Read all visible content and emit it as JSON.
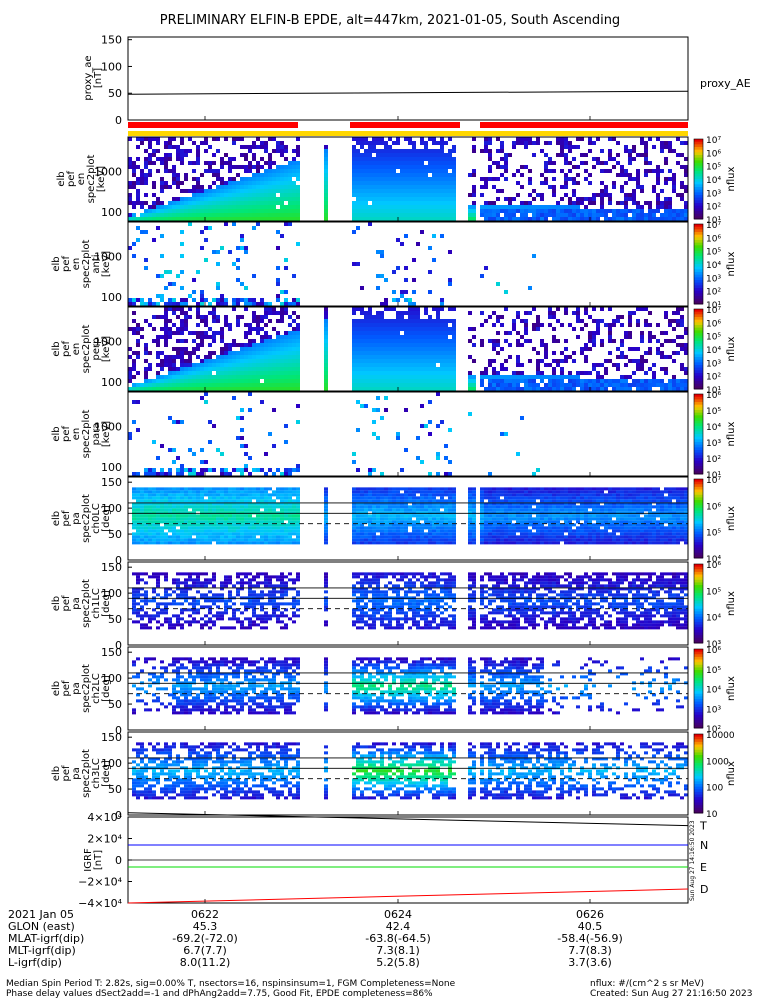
{
  "title": "PRELIMINARY ELFIN-B EPDE, alt=447km, 2021-01-05, South Ascending",
  "ae_panel": {
    "ylabel": [
      "proxy_ae",
      "[nT]"
    ],
    "ticks": [
      "150",
      "100",
      "50",
      "0"
    ],
    "legend": "proxy_AE",
    "ylim": [
      0,
      155
    ],
    "line_value": 50
  },
  "status_bars": {
    "red": "#ff0000",
    "yellow": "#ffd700"
  },
  "energy_panels": [
    {
      "ylabel": [
        "elb",
        "pef",
        "en",
        "spec2plot"
      ],
      "unit": "[keV]",
      "ticks": [
        "1000",
        "100"
      ],
      "cbar_ticks": [
        "10⁷",
        "10⁶",
        "10⁵",
        "10⁴",
        "10³",
        "10²",
        "10¹"
      ],
      "cbar_label": "nflux"
    },
    {
      "ylabel": [
        "elb",
        "pef",
        "en",
        "spec2plot",
        "anti"
      ],
      "unit": "[keV]",
      "ticks": [
        "1000",
        "100"
      ],
      "cbar_ticks": [
        "10⁷",
        "10⁶",
        "10⁵",
        "10⁴",
        "10³",
        "10²",
        "10¹"
      ],
      "cbar_label": "nflux"
    },
    {
      "ylabel": [
        "elb",
        "pef",
        "en",
        "spec2plot",
        "perp"
      ],
      "unit": "[keV]",
      "ticks": [
        "1000",
        "100"
      ],
      "cbar_ticks": [
        "10⁷",
        "10⁶",
        "10⁵",
        "10⁴",
        "10³",
        "10²",
        "10¹"
      ],
      "cbar_label": "nflux"
    },
    {
      "ylabel": [
        "elb",
        "pef",
        "en",
        "spec2plot",
        "para"
      ],
      "unit": "[keV]",
      "ticks": [
        "1000",
        "100"
      ],
      "cbar_ticks": [
        "10⁶",
        "10⁵",
        "10⁴",
        "10³",
        "10²",
        "10¹"
      ],
      "cbar_label": "nflux"
    }
  ],
  "pitch_panels": [
    {
      "ylabel": [
        "elb",
        "pef",
        "pa",
        "spec2plot",
        "ch0LC"
      ],
      "unit": "[deg]",
      "ticks": [
        "150",
        "100",
        "50",
        "0"
      ],
      "cbar_ticks": [
        "10⁷",
        "10⁶",
        "10⁵",
        "10⁴"
      ],
      "cbar_label": "nflux"
    },
    {
      "ylabel": [
        "elb",
        "pef",
        "pa",
        "spec2plot",
        "ch1LC"
      ],
      "unit": "[deg]",
      "ticks": [
        "150",
        "100",
        "50",
        "0"
      ],
      "cbar_ticks": [
        "10⁶",
        "10⁵",
        "10⁴",
        "10³"
      ],
      "cbar_label": "nflux"
    },
    {
      "ylabel": [
        "elb",
        "pef",
        "pa",
        "spec2plot",
        "ch2LC"
      ],
      "unit": "[deg]",
      "ticks": [
        "150",
        "100",
        "50",
        "0"
      ],
      "cbar_ticks": [
        "10⁶",
        "10⁵",
        "10⁴",
        "10³",
        "10²"
      ],
      "cbar_label": "nflux"
    },
    {
      "ylabel": [
        "elb",
        "pef",
        "pa",
        "spec2plot",
        "ch3LC"
      ],
      "unit": "[deg]",
      "ticks": [
        "150",
        "100",
        "50",
        "0"
      ],
      "cbar_ticks": [
        "10000",
        "1000",
        "100",
        "10"
      ],
      "cbar_label": "nflux"
    }
  ],
  "igrf_panel": {
    "ylabel": [
      "IGRF",
      "[nT]"
    ],
    "ticks": [
      "4×10⁴",
      "2×10⁴",
      "0",
      "−2×10⁴",
      "−4×10⁴"
    ],
    "stamp": "Sun Aug 27 14:16:50 2023",
    "ylim": [
      -40000,
      40000
    ],
    "series": [
      {
        "name": "T",
        "color": "#000000",
        "start": 44000,
        "end": 32000
      },
      {
        "name": "N",
        "color": "#0000ff",
        "start": 14000,
        "end": 14000
      },
      {
        "name": "E",
        "color": "#00dd00",
        "start": -6500,
        "end": -6500
      },
      {
        "name": "D",
        "color": "#ff0000",
        "start": -40000,
        "end": -27000
      }
    ]
  },
  "xaxis": {
    "rows": [
      {
        "label": "2021 Jan 05",
        "values": [
          "0622",
          "0624",
          "0626"
        ]
      },
      {
        "label": "GLON (east)",
        "values": [
          "45.3",
          "42.4",
          "40.5"
        ]
      },
      {
        "label": "MLAT-igrf(dip)",
        "values": [
          "-69.2(-72.0)",
          "-63.8(-64.5)",
          "-58.4(-56.9)"
        ]
      },
      {
        "label": "MLT-igrf(dip)",
        "values": [
          "6.7(7.7)",
          "7.3(8.1)",
          "7.7(8.3)"
        ]
      },
      {
        "label": "L-igrf(dip)",
        "values": [
          "8.0(11.2)",
          "5.2(5.8)",
          "3.7(3.6)"
        ]
      }
    ]
  },
  "footer": {
    "left1": "Median Spin Period T: 2.82s, sig=0.00% T, nsectors=16, nspinsinsum=1, FGM Completeness=None",
    "left2": "Phase delay values dSect2add=-1 and dPhAng2add=7.75, Good Fit, EPDE completeness=86%",
    "right1": "nflux: #/(cm^2 s sr MeV)",
    "right2": "Created: Sun Aug 27 21:16:50 2023"
  },
  "chart_data": {
    "type": "heatmap",
    "title": "PRELIMINARY ELFIN-B EPDE, alt=447km, 2021-01-05, South Ascending",
    "x_ticks": [
      "0622",
      "0624",
      "0626"
    ],
    "proxy_ae_nT": 50,
    "data_gaps": [
      "~0622:53-0623:10",
      "~0624:38-0624:48"
    ],
    "energy_range_keV": [
      60,
      7000
    ],
    "pitch_angle_range_deg": [
      0,
      180
    ],
    "igrf_components_nT": {
      "T": [
        44000,
        32000
      ],
      "N": [
        14000,
        14000
      ],
      "E": [
        -6500,
        -6500
      ],
      "D": [
        -40000,
        -27000
      ]
    }
  }
}
